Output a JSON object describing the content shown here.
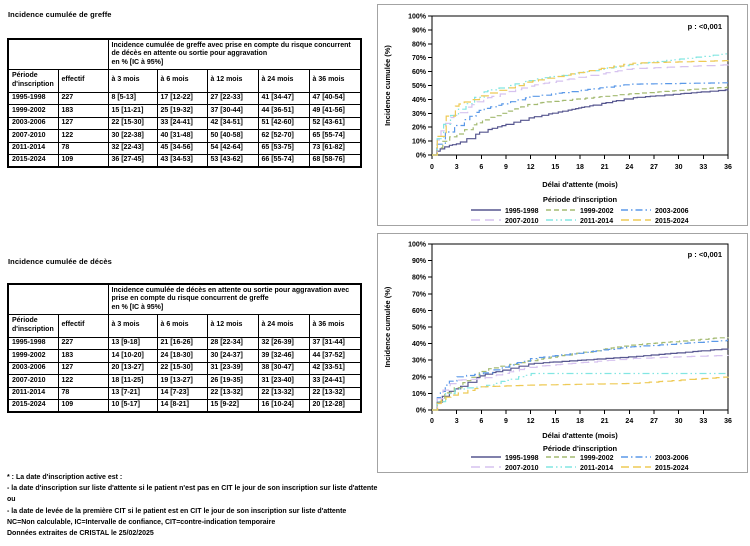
{
  "sections": {
    "greffe": {
      "title": "Incidence cumulée de greffe",
      "table": {
        "group_header": "Incidence cumulée de greffe avec prise en compte du risque concurrent de décès en attente ou sortie pour aggravation",
        "unit_line": "en % [IC à 95%]",
        "columns": [
          "Période d'inscription",
          "effectif",
          "à 3 mois",
          "à 6 mois",
          "à 12 mois",
          "à 24 mois",
          "à 36 mois"
        ],
        "rows": [
          [
            "1995-1998",
            "227",
            "8 [5-13]",
            "17 [12-22]",
            "27 [22-33]",
            "41 [34-47]",
            "47 [40-54]"
          ],
          [
            "1999-2002",
            "183",
            "15 [11-21]",
            "25 [19-32]",
            "37 [30-44]",
            "44 [36-51]",
            "49 [41-56]"
          ],
          [
            "2003-2006",
            "127",
            "22 [15-30]",
            "33 [24-41]",
            "42 [34-51]",
            "51 [42-60]",
            "52 [43-61]"
          ],
          [
            "2007-2010",
            "122",
            "30 [22-38]",
            "40 [31-48]",
            "50 [40-58]",
            "62 [52-70]",
            "65 [55-74]"
          ],
          [
            "2011-2014",
            "78",
            "32 [22-43]",
            "45 [34-56]",
            "54 [42-64]",
            "65 [53-75]",
            "73 [61-82]"
          ],
          [
            "2015-2024",
            "109",
            "36 [27-45]",
            "43 [34-53]",
            "53 [43-62]",
            "66 [55-74]",
            "68 [58-76]"
          ]
        ]
      }
    },
    "deces": {
      "title": "Incidence cumulée de décès",
      "table": {
        "group_header": "Incidence cumulée de décès en attente ou sortie pour aggravation avec prise en compte du risque concurrent de greffe",
        "unit_line": "en % [IC à 95%]",
        "columns": [
          "Période d'inscription",
          "effectif",
          "à 3 mois",
          "à 6 mois",
          "à 12 mois",
          "à 24 mois",
          "à 36 mois"
        ],
        "rows": [
          [
            "1995-1998",
            "227",
            "13 [9-18]",
            "21 [16-26]",
            "28 [22-34]",
            "32 [26-39]",
            "37 [31-44]"
          ],
          [
            "1999-2002",
            "183",
            "14 [10-20]",
            "24 [18-30]",
            "30 [24-37]",
            "39 [32-46]",
            "44 [37-52]"
          ],
          [
            "2003-2006",
            "127",
            "20 [13-27]",
            "22 [15-30]",
            "31 [23-39]",
            "38 [30-47]",
            "42 [33-51]"
          ],
          [
            "2007-2010",
            "122",
            "18 [11-25]",
            "19 [13-27]",
            "26 [19-35]",
            "31 [23-40]",
            "33 [24-41]"
          ],
          [
            "2011-2014",
            "78",
            "13 [7-21]",
            "14 [7-23]",
            "22 [13-32]",
            "22 [13-32]",
            "22 [13-32]"
          ],
          [
            "2015-2024",
            "109",
            "10 [5-17]",
            "14 [8-21]",
            "15 [9-22]",
            "16 [10-24]",
            "20 [12-28]"
          ]
        ]
      }
    }
  },
  "footnotes": [
    "* : La date d'inscription active est :",
    "- la date d'inscription sur liste d'attente si le patient n'est pas en CIT le jour de son inscription sur liste d'attente",
    "ou",
    "- la date de levée de la première CIT si le patient est en CIT le jour de son inscription sur liste d'attente",
    "NC=Non calculable, IC=Intervalle de confiance, CIT=contre-indication temporaire",
    "Données extraites de CRISTAL le 25/02/2025"
  ],
  "chart_data": [
    {
      "type": "line",
      "subtype": "cumulative-incidence-step",
      "title": "",
      "p_value_label": "p : <0,001",
      "xlabel": "Délai d'attente (mois)",
      "ylabel": "Incidence cumulée (%)",
      "legend_title": "Période d'inscription",
      "legend_position": "bottom",
      "grid": false,
      "xlim": [
        0,
        36
      ],
      "ylim": [
        0,
        100
      ],
      "x_ticks": [
        0,
        3,
        6,
        9,
        12,
        15,
        18,
        21,
        24,
        27,
        30,
        33,
        36
      ],
      "y_ticks": [
        0,
        10,
        20,
        30,
        40,
        50,
        60,
        70,
        80,
        90,
        100
      ],
      "key_months": [
        0,
        3,
        6,
        12,
        24,
        36
      ],
      "series": [
        {
          "name": "1995-1998",
          "color": "#56568f",
          "dash": "solid",
          "values_pct": [
            0,
            8,
            17,
            27,
            41,
            47
          ]
        },
        {
          "name": "1999-2002",
          "color": "#a3ba70",
          "dash": "dash",
          "values_pct": [
            0,
            15,
            25,
            37,
            44,
            49
          ]
        },
        {
          "name": "2003-2006",
          "color": "#5b99e8",
          "dash": "dashdot",
          "values_pct": [
            0,
            22,
            33,
            42,
            51,
            52
          ]
        },
        {
          "name": "2007-2010",
          "color": "#d6c2ef",
          "dash": "longdash",
          "values_pct": [
            0,
            30,
            40,
            50,
            62,
            65
          ]
        },
        {
          "name": "2011-2014",
          "color": "#82e6e2",
          "dash": "dashdotdot",
          "values_pct": [
            0,
            32,
            45,
            54,
            65,
            73
          ]
        },
        {
          "name": "2015-2024",
          "color": "#eeca55",
          "dash": "dash2",
          "values_pct": [
            0,
            36,
            43,
            53,
            66,
            68
          ]
        }
      ]
    },
    {
      "type": "line",
      "subtype": "cumulative-incidence-step",
      "title": "",
      "p_value_label": "p : <0,001",
      "xlabel": "Délai d'attente (mois)",
      "ylabel": "Incidence cumulée (%)",
      "legend_title": "Période d'inscription",
      "legend_position": "bottom",
      "grid": false,
      "xlim": [
        0,
        36
      ],
      "ylim": [
        0,
        100
      ],
      "x_ticks": [
        0,
        3,
        6,
        9,
        12,
        15,
        18,
        21,
        24,
        27,
        30,
        33,
        36
      ],
      "y_ticks": [
        0,
        10,
        20,
        30,
        40,
        50,
        60,
        70,
        80,
        90,
        100
      ],
      "key_months": [
        0,
        3,
        6,
        12,
        24,
        36
      ],
      "series": [
        {
          "name": "1995-1998",
          "color": "#56568f",
          "dash": "solid",
          "values_pct": [
            0,
            13,
            21,
            28,
            32,
            37
          ]
        },
        {
          "name": "1999-2002",
          "color": "#a3ba70",
          "dash": "dash",
          "values_pct": [
            0,
            14,
            24,
            30,
            39,
            44
          ]
        },
        {
          "name": "2003-2006",
          "color": "#5b99e8",
          "dash": "dashdot",
          "values_pct": [
            0,
            20,
            22,
            31,
            38,
            42
          ]
        },
        {
          "name": "2007-2010",
          "color": "#d6c2ef",
          "dash": "longdash",
          "values_pct": [
            0,
            18,
            19,
            26,
            31,
            33
          ]
        },
        {
          "name": "2011-2014",
          "color": "#82e6e2",
          "dash": "dashdotdot",
          "values_pct": [
            0,
            13,
            14,
            22,
            22,
            22
          ]
        },
        {
          "name": "2015-2024",
          "color": "#eeca55",
          "dash": "dash2",
          "values_pct": [
            0,
            10,
            14,
            15,
            16,
            20
          ]
        }
      ]
    }
  ]
}
